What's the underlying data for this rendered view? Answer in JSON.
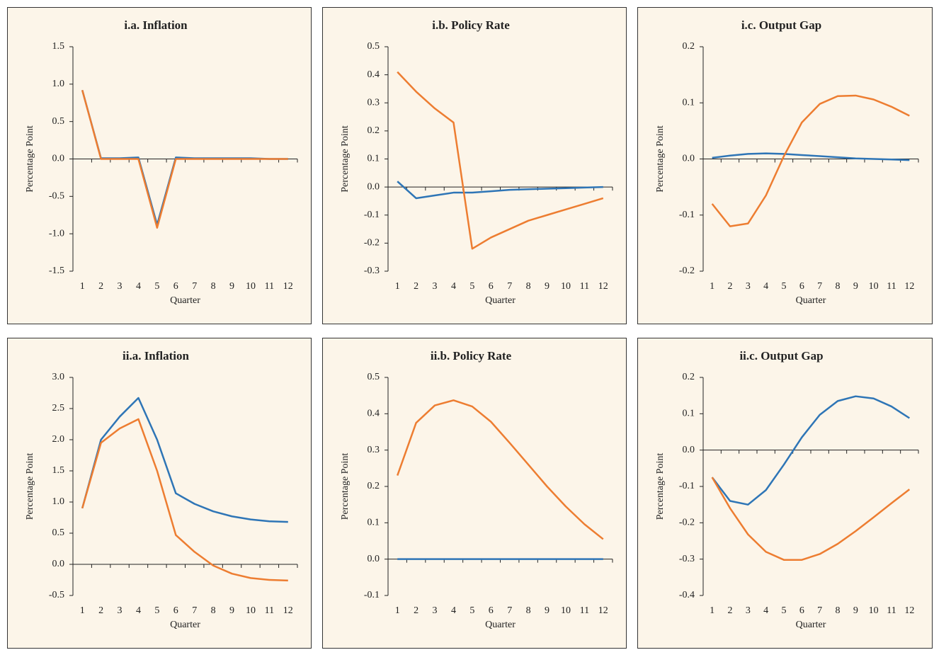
{
  "chart_data": [
    {
      "type": "line",
      "title": "i.a. Inflation",
      "ylabel": "Percentage Point",
      "xlabel": "Quarter",
      "categories": [
        "1",
        "2",
        "3",
        "4",
        "5",
        "6",
        "7",
        "8",
        "9",
        "10",
        "11",
        "12"
      ],
      "series": [
        {
          "color": "#2e75b6",
          "values": [
            0.92,
            0.01,
            0.01,
            0.02,
            -0.88,
            0.02,
            0.01,
            0.01,
            0.01,
            0.01,
            0.0,
            0.0
          ]
        },
        {
          "color": "#ed7d31",
          "values": [
            0.92,
            0.0,
            0.0,
            0.0,
            -0.92,
            0.0,
            0.0,
            0.0,
            0.0,
            0.0,
            0.0,
            0.0
          ]
        }
      ],
      "ylim": [
        -1.5,
        1.5
      ],
      "yticks": [
        -1.5,
        {
          "value": -1,
          "label": "-1.0"
        },
        -0.5,
        {
          "value": 0,
          "label": "0.0"
        },
        0.5,
        {
          "value": 1,
          "label": "1.0"
        },
        1.5
      ]
    },
    {
      "type": "line",
      "title": "i.b. Policy Rate",
      "ylabel": "Percentage Point",
      "xlabel": "Quarter",
      "categories": [
        "1",
        "2",
        "3",
        "4",
        "5",
        "6",
        "7",
        "8",
        "9",
        "10",
        "11",
        "12"
      ],
      "series": [
        {
          "color": "#2e75b6",
          "values": [
            0.02,
            -0.04,
            -0.03,
            -0.02,
            -0.02,
            -0.015,
            -0.01,
            -0.008,
            -0.006,
            -0.004,
            -0.002,
            0.0
          ]
        },
        {
          "color": "#ed7d31",
          "values": [
            0.41,
            0.34,
            0.28,
            0.23,
            -0.22,
            -0.18,
            -0.15,
            -0.12,
            -0.1,
            -0.08,
            -0.06,
            -0.04
          ]
        }
      ],
      "ylim": [
        -0.3,
        0.5
      ],
      "yticks": [
        -0.3,
        -0.2,
        -0.1,
        {
          "value": 0,
          "label": "0.0"
        },
        0.1,
        0.2,
        0.3,
        0.4,
        0.5
      ]
    },
    {
      "type": "line",
      "title": "i.c. Output Gap",
      "ylabel": "Percentage Point",
      "xlabel": "Quarter",
      "categories": [
        "1",
        "2",
        "3",
        "4",
        "5",
        "6",
        "7",
        "8",
        "9",
        "10",
        "11",
        "12"
      ],
      "series": [
        {
          "color": "#2e75b6",
          "values": [
            0.002,
            0.006,
            0.009,
            0.01,
            0.009,
            0.007,
            0.005,
            0.003,
            0.001,
            0.0,
            -0.001,
            -0.002
          ]
        },
        {
          "color": "#ed7d31",
          "values": [
            -0.08,
            -0.12,
            -0.115,
            -0.065,
            0.005,
            0.065,
            0.098,
            0.112,
            0.113,
            0.106,
            0.093,
            0.077
          ]
        }
      ],
      "ylim": [
        -0.2,
        0.2
      ],
      "yticks": [
        -0.2,
        -0.1,
        {
          "value": 0,
          "label": "0.0"
        },
        0.1,
        0.2
      ]
    },
    {
      "type": "line",
      "title": "ii.a. Inflation",
      "ylabel": "Percentage Point",
      "xlabel": "Quarter",
      "categories": [
        "1",
        "2",
        "3",
        "4",
        "5",
        "6",
        "7",
        "8",
        "9",
        "10",
        "11",
        "12"
      ],
      "series": [
        {
          "color": "#2e75b6",
          "values": [
            0.9,
            2.0,
            2.37,
            2.67,
            2.0,
            1.14,
            0.97,
            0.85,
            0.77,
            0.72,
            0.69,
            0.68
          ]
        },
        {
          "color": "#ed7d31",
          "values": [
            0.9,
            1.95,
            2.18,
            2.33,
            1.5,
            0.47,
            0.2,
            -0.02,
            -0.15,
            -0.22,
            -0.25,
            -0.26
          ]
        }
      ],
      "ylim": [
        -0.5,
        3
      ],
      "yticks": [
        -0.5,
        {
          "value": 0,
          "label": "0.0"
        },
        0.5,
        {
          "value": 1,
          "label": "1.0"
        },
        1.5,
        {
          "value": 2,
          "label": "2.0"
        },
        2.5,
        {
          "value": 3,
          "label": "3.0"
        }
      ]
    },
    {
      "type": "line",
      "title": "ii.b. Policy Rate",
      "ylabel": "Percentage Point",
      "xlabel": "Quarter",
      "categories": [
        "1",
        "2",
        "3",
        "4",
        "5",
        "6",
        "7",
        "8",
        "9",
        "10",
        "11",
        "12"
      ],
      "series": [
        {
          "color": "#2e75b6",
          "values": [
            0,
            0,
            0,
            0,
            0,
            0,
            0,
            0,
            0,
            0,
            0,
            0
          ]
        },
        {
          "color": "#ed7d31",
          "values": [
            0.23,
            0.375,
            0.423,
            0.437,
            0.42,
            0.378,
            0.32,
            0.26,
            0.2,
            0.145,
            0.096,
            0.055
          ]
        }
      ],
      "ylim": [
        -0.1,
        0.5
      ],
      "yticks": [
        -0.1,
        {
          "value": 0,
          "label": "0.0"
        },
        0.1,
        0.2,
        0.3,
        0.4,
        0.5
      ]
    },
    {
      "type": "line",
      "title": "ii.c. Output Gap",
      "ylabel": "Percentage Point",
      "xlabel": "Quarter",
      "categories": [
        "1",
        "2",
        "3",
        "4",
        "5",
        "6",
        "7",
        "8",
        "9",
        "10",
        "11",
        "12"
      ],
      "series": [
        {
          "color": "#2e75b6",
          "values": [
            -0.075,
            -0.14,
            -0.15,
            -0.11,
            -0.04,
            0.035,
            0.097,
            0.135,
            0.148,
            0.142,
            0.12,
            0.088
          ]
        },
        {
          "color": "#ed7d31",
          "values": [
            -0.075,
            -0.16,
            -0.232,
            -0.28,
            -0.302,
            -0.302,
            -0.286,
            -0.258,
            -0.223,
            -0.185,
            -0.146,
            -0.108
          ]
        }
      ],
      "ylim": [
        -0.4,
        0.2
      ],
      "yticks": [
        -0.4,
        -0.3,
        -0.2,
        -0.1,
        {
          "value": 0,
          "label": "0.0"
        },
        0.1,
        0.2
      ]
    }
  ]
}
